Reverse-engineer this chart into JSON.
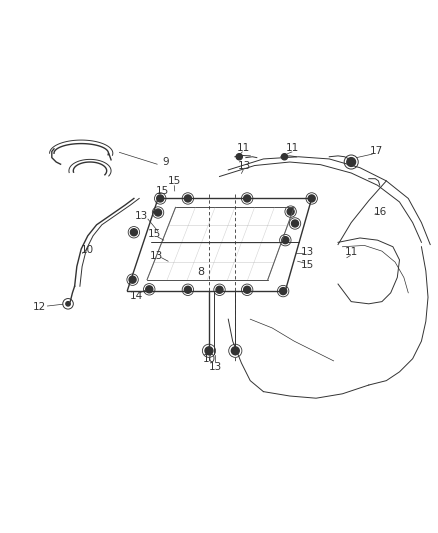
{
  "bg_color": "#ffffff",
  "line_color": "#333333",
  "figsize": [
    4.39,
    5.33
  ],
  "dpi": 100
}
